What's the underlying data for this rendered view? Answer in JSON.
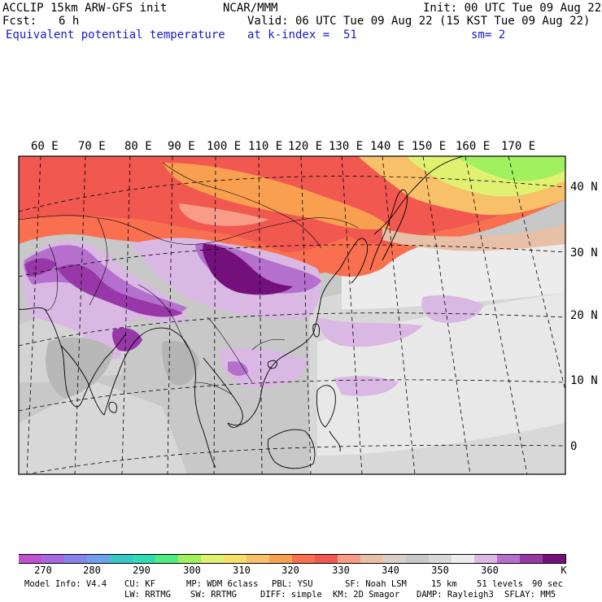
{
  "header": {
    "model_line": "ACCLIP 15km ARW-GFS init",
    "fcst_label": "Fcst:",
    "fcst_value": "6 h",
    "field_name": "Equivalent potential temperature",
    "org": "NCAR/MMM",
    "init": "Init: 00 UTC Tue 09 Aug 22",
    "valid": "Valid: 06 UTC Tue 09 Aug 22 (15 KST Tue 09 Aug 22)",
    "level": "at k-index =  51",
    "smooth": "sm= 2"
  },
  "map": {
    "lon_labels": [
      "60 E",
      "70 E",
      "80 E",
      "90 E",
      "100 E",
      "110 E",
      "120 E",
      "130 E",
      "140 E",
      "150 E",
      "160 E",
      "170 E"
    ],
    "lat_labels": [
      "40 N",
      "30 N",
      "20 N",
      "10 N",
      "0"
    ]
  },
  "colorbar": {
    "unit": "K",
    "ticks": [
      "270",
      "280",
      "290",
      "300",
      "310",
      "320",
      "330",
      "340",
      "350",
      "360"
    ],
    "colors": [
      "#c050d0",
      "#a468e0",
      "#8484ec",
      "#6ea0f0",
      "#38c8c8",
      "#30dcb0",
      "#50ec80",
      "#a0f060",
      "#e0f070",
      "#f8e068",
      "#f8c068",
      "#f8a050",
      "#f87050",
      "#f05850",
      "#f89c88",
      "#e8c0a8",
      "#d8d0c8",
      "#c8c8c8",
      "#d8d8d8",
      "#ececec",
      "#dab8e4",
      "#b470cc",
      "#9838a8",
      "#74107c"
    ]
  },
  "footer": {
    "line1": [
      "Model Info: V4.4",
      "CU: KF",
      "MP: WDM 6class",
      "PBL: YSU",
      "SF: Noah LSM",
      "15 km",
      "51 levels",
      "90 sec"
    ],
    "line2": [
      "LW: RRTMG",
      "SW: RRTMG",
      "DIFF: simple",
      "KM: 2D Smagor",
      "DAMP: Rayleigh3",
      "SFLAY: MM5"
    ]
  }
}
